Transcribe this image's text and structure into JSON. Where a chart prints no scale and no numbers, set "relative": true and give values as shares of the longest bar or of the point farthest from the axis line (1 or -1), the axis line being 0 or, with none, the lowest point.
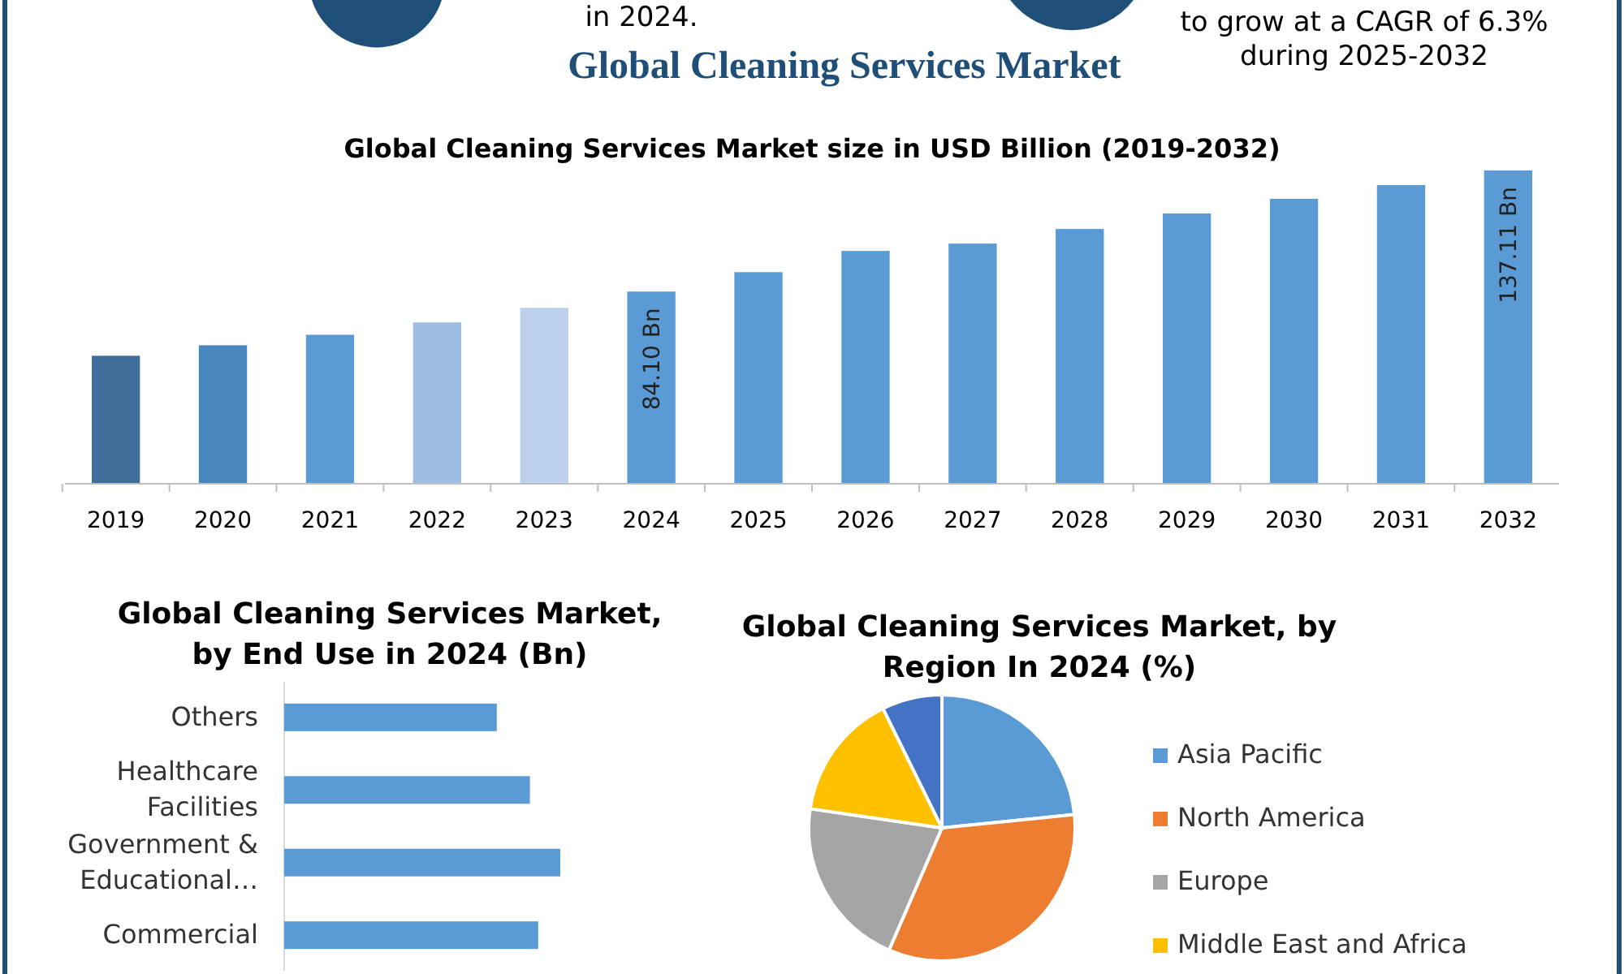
{
  "chart_data": [
    {
      "type": "bar",
      "title": "Global Cleaning Services Market",
      "subtitle": "Global Cleaning Services Market size in USD Billion (2019-2032)",
      "annotations": [
        "in 2024.",
        "to grow at a CAGR of 6.3% during 2025-2032"
      ],
      "categories": [
        "2019",
        "2020",
        "2021",
        "2022",
        "2023",
        "2024",
        "2025",
        "2026",
        "2027",
        "2028",
        "2029",
        "2030",
        "2031",
        "2032"
      ],
      "values": [
        56.0,
        60.6,
        65.2,
        70.6,
        77.0,
        84.1,
        92.6,
        101.9,
        105.1,
        111.5,
        118.3,
        124.7,
        130.7,
        137.11
      ],
      "colors": [
        "#3f6e9a",
        "#4a86be",
        "#5b9bd5",
        "#9dbde3",
        "#bdd1ec",
        "#5b9bd5",
        "#5b9bd5",
        "#5b9bd5",
        "#5b9bd5",
        "#5b9bd5",
        "#5b9bd5",
        "#5b9bd5",
        "#5b9bd5",
        "#5b9bd5"
      ],
      "value_labels": [
        null,
        null,
        null,
        null,
        null,
        "84.10 Bn",
        null,
        null,
        null,
        null,
        null,
        null,
        null,
        "137.11 Bn"
      ],
      "tick_labels": "x"
    },
    {
      "type": "bar",
      "orientation": "horizontal",
      "relative": true,
      "title": "Global Cleaning Services Market, by End Use in 2024 (Bn)",
      "categories": [
        "Others",
        "Healthcare Facilities",
        "Government & Educational…",
        "Commercial"
      ],
      "values": [
        0.77,
        0.89,
        1,
        0.92
      ],
      "color": "#5b9bd5"
    },
    {
      "type": "pie",
      "title": "Global Cleaning Services Market, by Region In 2024 (%)",
      "categories": [
        "Asia Pacific",
        "North America",
        "Europe",
        "Middle East and Africa",
        null
      ],
      "values": [
        23.4,
        33.1,
        20.8,
        15.4,
        7.3
      ],
      "colors": [
        "#5b9bd5",
        "#ed7d31",
        "#a5a5a5",
        "#ffc000",
        "#4472c4"
      ],
      "legend": "right"
    }
  ]
}
